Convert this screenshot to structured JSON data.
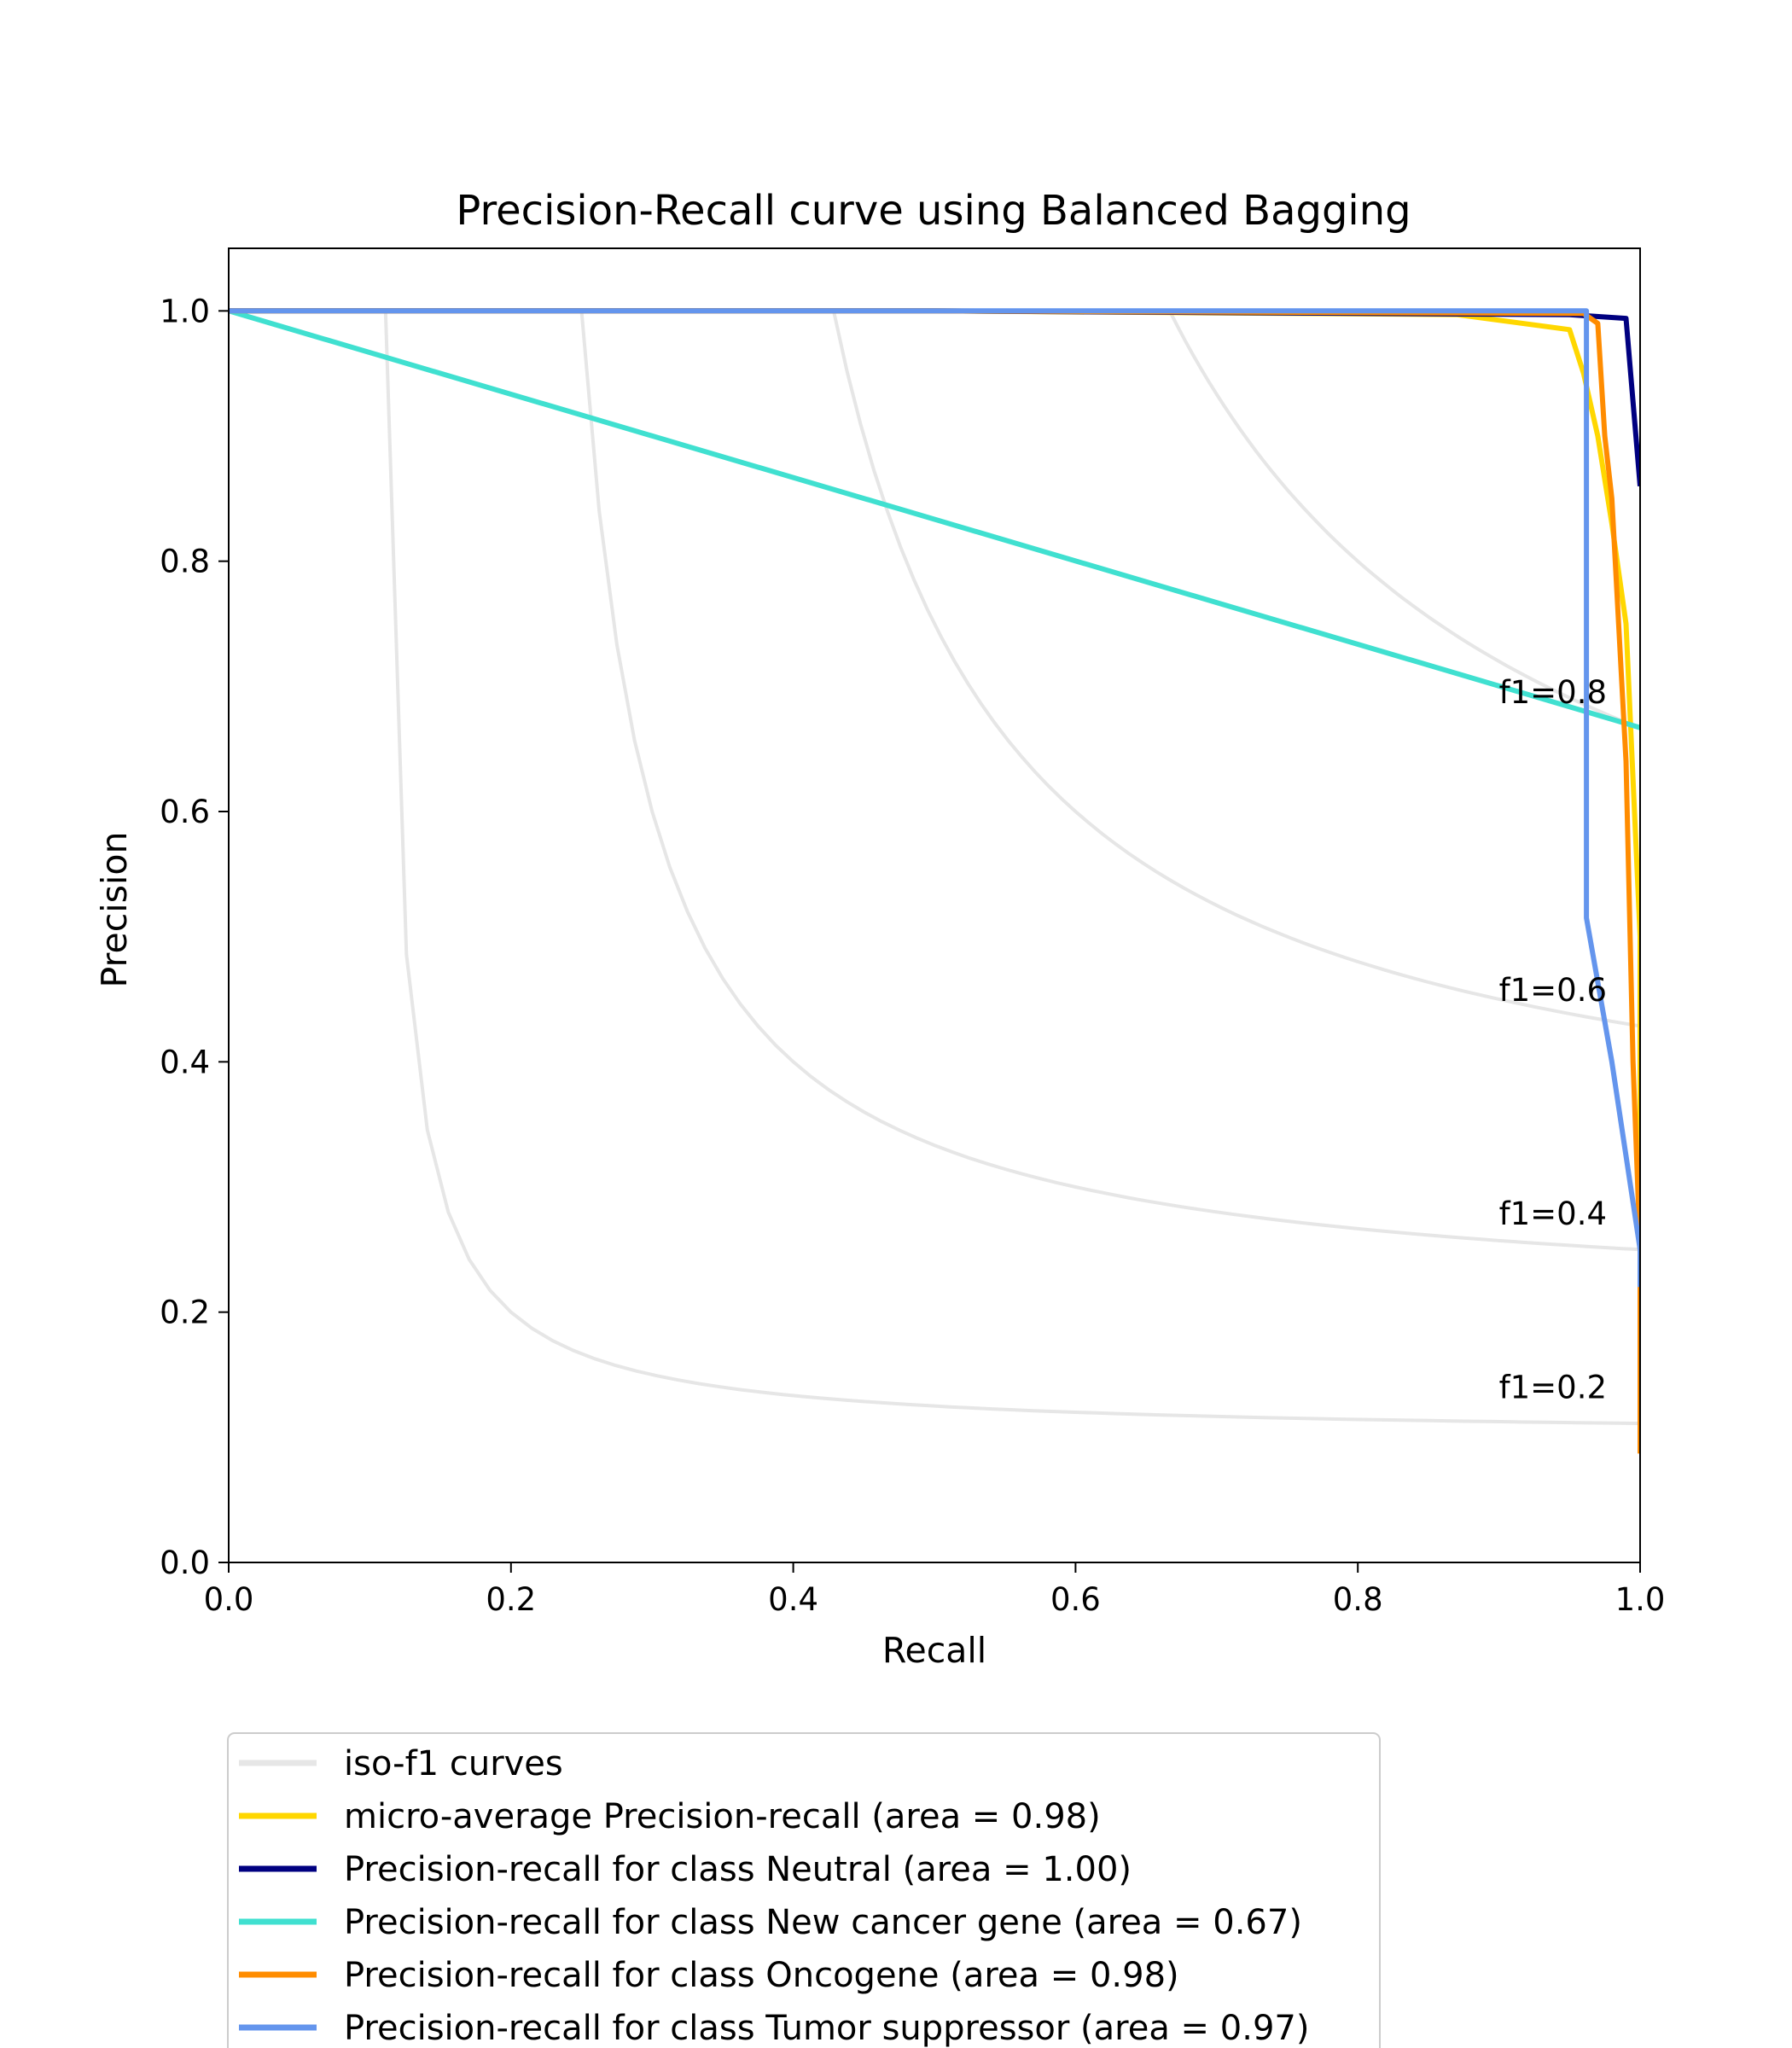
{
  "chart_data": {
    "type": "line",
    "title": "Precision-Recall curve using Balanced Bagging",
    "xlabel": "Recall",
    "ylabel": "Precision",
    "xlim": [
      0.0,
      1.0
    ],
    "ylim": [
      0.0,
      1.05
    ],
    "xticks": [
      "0.0",
      "0.2",
      "0.4",
      "0.6",
      "0.8",
      "1.0"
    ],
    "yticks": [
      "0.0",
      "0.2",
      "0.4",
      "0.6",
      "0.8",
      "1.0"
    ],
    "grid": false,
    "legend_position": "below plot",
    "iso_f1": {
      "label": "iso-f1 curves",
      "color": "#e6e6e6",
      "values": [
        0.2,
        0.4,
        0.6,
        0.8
      ],
      "annotations": [
        "f1=0.2",
        "f1=0.4",
        "f1=0.6",
        "f1=0.8"
      ]
    },
    "series": [
      {
        "name": "micro-average Precision-recall (area = 0.98)",
        "color": "#ffd700",
        "x": [
          0.0,
          0.5,
          0.87,
          0.95,
          0.96,
          0.97,
          0.98,
          0.99,
          1.0,
          1.0
        ],
        "y": [
          1.0,
          1.0,
          0.997,
          0.985,
          0.95,
          0.9,
          0.83,
          0.75,
          0.5,
          0.1
        ]
      },
      {
        "name": "Precision-recall for class Neutral (area = 1.00)",
        "color": "#000080",
        "x": [
          0.0,
          0.5,
          0.95,
          0.99,
          1.0
        ],
        "y": [
          1.0,
          1.0,
          0.997,
          0.994,
          0.86
        ]
      },
      {
        "name": "Precision-recall for class New cancer gene (area = 0.67)",
        "color": "#40e0d0",
        "x": [
          0.0,
          1.0
        ],
        "y": [
          1.0,
          0.667
        ]
      },
      {
        "name": "Precision-recall for class Oncogene (area = 0.98)",
        "color": "#ff8c00",
        "x": [
          0.0,
          0.5,
          0.96,
          0.97,
          0.975,
          0.98,
          0.99,
          0.995,
          1.0,
          1.0
        ],
        "y": [
          1.0,
          1.0,
          0.998,
          0.99,
          0.9,
          0.85,
          0.64,
          0.4,
          0.25,
          0.087
        ]
      },
      {
        "name": "Precision-recall for class Tumor suppressor (area = 0.97)",
        "color": "#6495ed",
        "x": [
          0.0,
          0.5,
          0.96,
          0.962,
          0.962,
          0.98,
          1.0,
          1.0
        ],
        "y": [
          1.0,
          1.0,
          1.0,
          1.0,
          0.515,
          0.4,
          0.25,
          0.22
        ]
      }
    ]
  }
}
